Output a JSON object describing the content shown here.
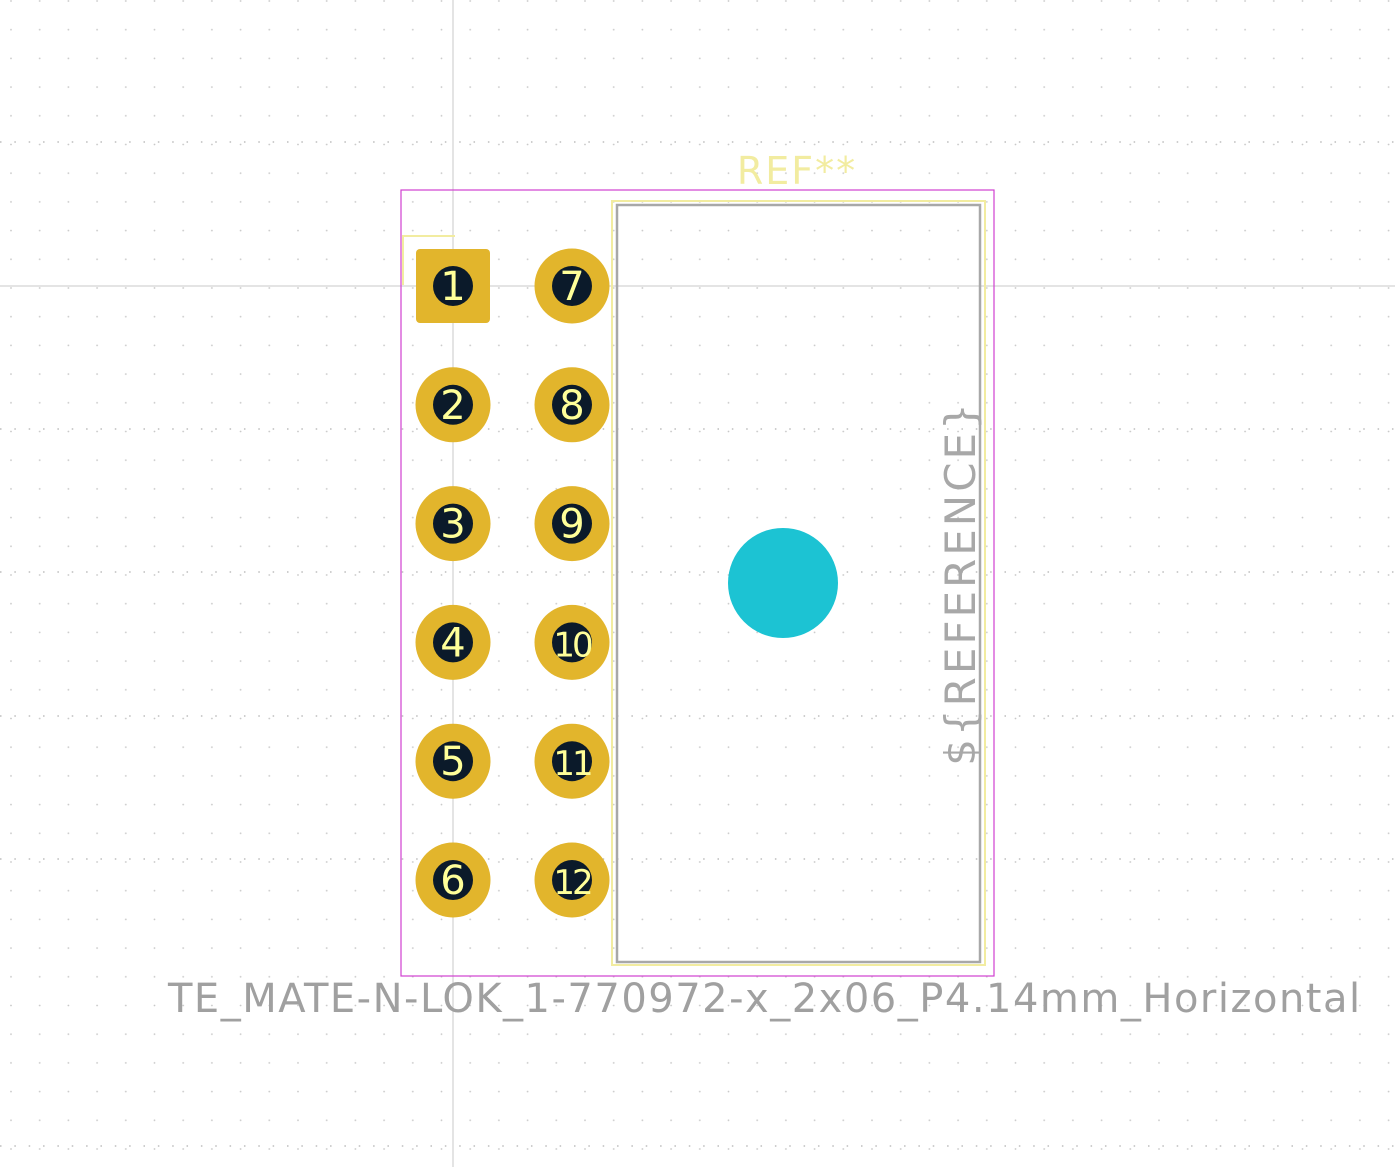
{
  "footprint": {
    "ref_text": "REF**",
    "reference_field": "${REFERENCE}",
    "value_text": "TE_MATE-N-LOK_1-770972-x_2x06_P4.14mm_Horizontal",
    "pads": [
      {
        "number": "1",
        "shape": "rect"
      },
      {
        "number": "2",
        "shape": "circle"
      },
      {
        "number": "3",
        "shape": "circle"
      },
      {
        "number": "4",
        "shape": "circle"
      },
      {
        "number": "5",
        "shape": "circle"
      },
      {
        "number": "6",
        "shape": "circle"
      },
      {
        "number": "7",
        "shape": "circle"
      },
      {
        "number": "8",
        "shape": "circle"
      },
      {
        "number": "9",
        "shape": "circle"
      },
      {
        "number": "10",
        "shape": "circle"
      },
      {
        "number": "11",
        "shape": "circle"
      },
      {
        "number": "12",
        "shape": "circle"
      }
    ]
  },
  "colors": {
    "background": "#ffffff",
    "grid_dot": "#c8c8c8",
    "crosshair": "#c8c8c8",
    "pad": "#e2b52c",
    "pad_hole": "#0b1a2a",
    "pad_number": "#ffff99",
    "silkscreen": "#f2eca0",
    "fab": "#a8a8a8",
    "courtyard": "#d040d0",
    "mounting_hole": "#1cc3d3",
    "value_text": "#a0a0a0"
  }
}
